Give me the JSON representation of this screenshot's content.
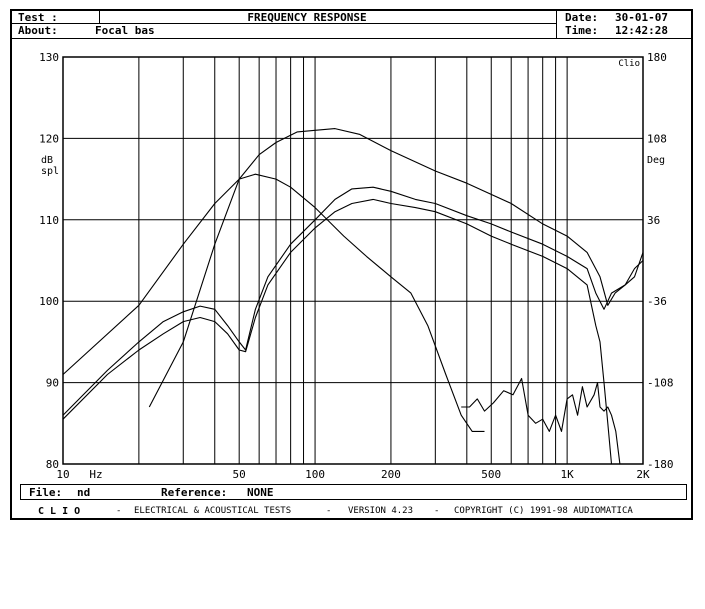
{
  "header": {
    "test_label": "Test :",
    "about_label": "About:",
    "about_value": "Focal bas",
    "title": "FREQUENCY RESPONSE",
    "date_label": "Date:",
    "date_value": "30-01-07",
    "time_label": "Time:",
    "time_value": "12:42:28"
  },
  "file_bar": {
    "file_label": "File:",
    "file_value": "nd",
    "reference_label": "Reference:",
    "reference_value": "NONE"
  },
  "footer": {
    "brand": "C L I O",
    "dash": "-",
    "description": "ELECTRICAL & ACOUSTICAL TESTS",
    "version": "VERSION 4.23",
    "copyright": "COPYRIGHT (C) 1991-98 AUDIOMATICA"
  },
  "chart_data": {
    "type": "line",
    "x_scale": "log",
    "xlim": [
      10,
      2000
    ],
    "ylim": [
      80,
      130
    ],
    "y2lim": [
      -180,
      180
    ],
    "ylabel": "dB\nspl",
    "y2label": "Deg",
    "x_unit_label": "Hz",
    "corner_label": "Clio",
    "grid": true,
    "x_ticks": [
      {
        "value": 10,
        "label": "10"
      },
      {
        "value": 50,
        "label": "50"
      },
      {
        "value": 100,
        "label": "100"
      },
      {
        "value": 200,
        "label": "200"
      },
      {
        "value": 500,
        "label": "500"
      },
      {
        "value": 1000,
        "label": "1K"
      },
      {
        "value": 2000,
        "label": "2K"
      }
    ],
    "y_ticks": [
      80,
      90,
      100,
      110,
      120,
      130
    ],
    "y2_ticks": [
      -180,
      -108,
      -36,
      36,
      108,
      180
    ],
    "series": [
      {
        "values": [
          [
            10,
            91
          ],
          [
            20,
            99.5
          ],
          [
            30,
            107
          ],
          [
            40,
            112
          ],
          [
            50,
            115
          ],
          [
            58,
            115.6
          ],
          [
            70,
            115
          ],
          [
            80,
            114
          ],
          [
            100,
            111.5
          ],
          [
            130,
            108
          ],
          [
            160,
            105.5
          ],
          [
            200,
            103
          ],
          [
            240,
            101
          ],
          [
            280,
            97
          ],
          [
            330,
            91
          ],
          [
            380,
            86
          ],
          [
            420,
            84
          ],
          [
            470,
            84
          ]
        ]
      },
      {
        "values": [
          [
            22,
            87
          ],
          [
            30,
            95
          ],
          [
            40,
            107
          ],
          [
            50,
            115
          ],
          [
            60,
            118
          ],
          [
            70,
            119.5
          ],
          [
            85,
            120.8
          ],
          [
            100,
            121
          ],
          [
            120,
            121.2
          ],
          [
            150,
            120.5
          ],
          [
            200,
            118.5
          ],
          [
            300,
            116
          ],
          [
            400,
            114.5
          ],
          [
            600,
            112
          ],
          [
            800,
            109.5
          ],
          [
            1000,
            108
          ],
          [
            1200,
            106
          ],
          [
            1350,
            103
          ],
          [
            1450,
            99.5
          ],
          [
            1550,
            101
          ],
          [
            1700,
            102
          ],
          [
            1850,
            103
          ],
          [
            2000,
            106
          ]
        ]
      },
      {
        "values": [
          [
            10,
            85.5
          ],
          [
            15,
            91
          ],
          [
            20,
            94
          ],
          [
            25,
            96
          ],
          [
            30,
            97.5
          ],
          [
            35,
            98
          ],
          [
            40,
            97.5
          ],
          [
            45,
            96
          ],
          [
            50,
            94
          ],
          [
            53,
            93.8
          ],
          [
            58,
            98
          ],
          [
            65,
            102
          ],
          [
            80,
            106
          ],
          [
            100,
            109
          ],
          [
            120,
            111
          ],
          [
            140,
            112
          ],
          [
            170,
            112.5
          ],
          [
            200,
            112
          ],
          [
            250,
            111.5
          ],
          [
            300,
            111
          ],
          [
            400,
            109.5
          ],
          [
            500,
            108
          ],
          [
            600,
            107
          ],
          [
            800,
            105.5
          ],
          [
            1000,
            104
          ],
          [
            1200,
            102
          ],
          [
            1300,
            97
          ],
          [
            1350,
            95
          ],
          [
            1400,
            90
          ],
          [
            1450,
            85
          ],
          [
            1500,
            80
          ]
        ]
      },
      {
        "values": [
          [
            10,
            86
          ],
          [
            15,
            91.5
          ],
          [
            20,
            95
          ],
          [
            25,
            97.5
          ],
          [
            30,
            98.7
          ],
          [
            35,
            99.4
          ],
          [
            40,
            99
          ],
          [
            45,
            97
          ],
          [
            50,
            95
          ],
          [
            53,
            94
          ],
          [
            58,
            99
          ],
          [
            65,
            103
          ],
          [
            80,
            107
          ],
          [
            100,
            110
          ],
          [
            120,
            112.5
          ],
          [
            140,
            113.8
          ],
          [
            170,
            114
          ],
          [
            200,
            113.5
          ],
          [
            250,
            112.5
          ],
          [
            300,
            112
          ],
          [
            400,
            110.5
          ],
          [
            500,
            109.5
          ],
          [
            600,
            108.5
          ],
          [
            800,
            107
          ],
          [
            1000,
            105.5
          ],
          [
            1200,
            104
          ],
          [
            1300,
            101
          ],
          [
            1400,
            99
          ],
          [
            1500,
            101
          ],
          [
            1700,
            102
          ],
          [
            1850,
            104
          ],
          [
            2000,
            105
          ]
        ]
      },
      {
        "values": [
          [
            380,
            87
          ],
          [
            410,
            87
          ],
          [
            440,
            88
          ],
          [
            470,
            86.5
          ],
          [
            510,
            87.5
          ],
          [
            560,
            89
          ],
          [
            610,
            88.5
          ],
          [
            660,
            90.5
          ],
          [
            700,
            86
          ],
          [
            750,
            85
          ],
          [
            800,
            85.5
          ],
          [
            850,
            84
          ],
          [
            900,
            86
          ],
          [
            950,
            84
          ],
          [
            1000,
            88
          ],
          [
            1050,
            88.5
          ],
          [
            1100,
            86
          ],
          [
            1150,
            89.5
          ],
          [
            1200,
            87
          ],
          [
            1280,
            88.5
          ],
          [
            1320,
            90
          ],
          [
            1350,
            87
          ],
          [
            1400,
            86.5
          ],
          [
            1450,
            87
          ],
          [
            1500,
            86
          ],
          [
            1560,
            84
          ],
          [
            1620,
            80
          ]
        ]
      }
    ]
  }
}
